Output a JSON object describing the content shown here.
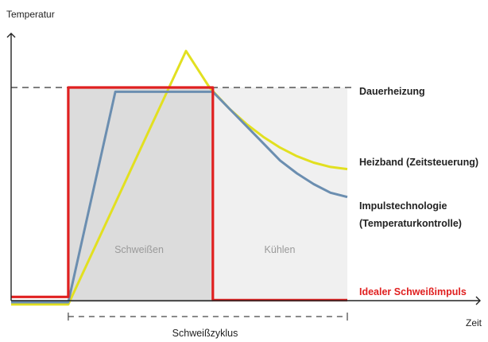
{
  "chart_data": {
    "type": "line",
    "title": "",
    "ylabel": "Temperatur",
    "xlabel": "Zeit",
    "xlim": [
      0,
      100
    ],
    "ylim": [
      0,
      100
    ],
    "grid": false,
    "reference_line": {
      "name": "Dauerheizung",
      "y": 100,
      "color": "#333333"
    },
    "regions": [
      {
        "name": "Schweißen",
        "x_start": 17,
        "x_end": 60,
        "color": "#dcdcdc"
      },
      {
        "name": "Kühlen",
        "x_start": 60,
        "x_end": 100,
        "color": "#f0f0f0"
      }
    ],
    "cycle": {
      "label": "Schweißzyklus",
      "x_start": 17,
      "x_end": 100
    },
    "series": [
      {
        "name": "Idealer Schweißimpuls",
        "color": "#e02020",
        "points": [
          [
            0,
            2.5
          ],
          [
            17,
            2.5
          ],
          [
            17,
            100
          ],
          [
            60,
            100
          ],
          [
            60,
            1
          ],
          [
            100,
            1
          ]
        ]
      },
      {
        "name": "Impulstechnologie (Temperaturkontrolle)",
        "color": "#6b8eb0",
        "points": [
          [
            0,
            0
          ],
          [
            17,
            0
          ],
          [
            31,
            98
          ],
          [
            60,
            98
          ],
          [
            65,
            90
          ],
          [
            70,
            82
          ],
          [
            75,
            74
          ],
          [
            80,
            66
          ],
          [
            85,
            60
          ],
          [
            90,
            55
          ],
          [
            95,
            51
          ],
          [
            100,
            49
          ]
        ]
      },
      {
        "name": "Heizband (Zeitsteuerung)",
        "color": "#e2e020",
        "points": [
          [
            0,
            -1
          ],
          [
            17,
            -1
          ],
          [
            52,
            117
          ],
          [
            59,
            100
          ],
          [
            65,
            90
          ],
          [
            70,
            83
          ],
          [
            75,
            77
          ],
          [
            80,
            72
          ],
          [
            85,
            68
          ],
          [
            90,
            65
          ],
          [
            95,
            63
          ],
          [
            100,
            62
          ]
        ]
      }
    ]
  }
}
